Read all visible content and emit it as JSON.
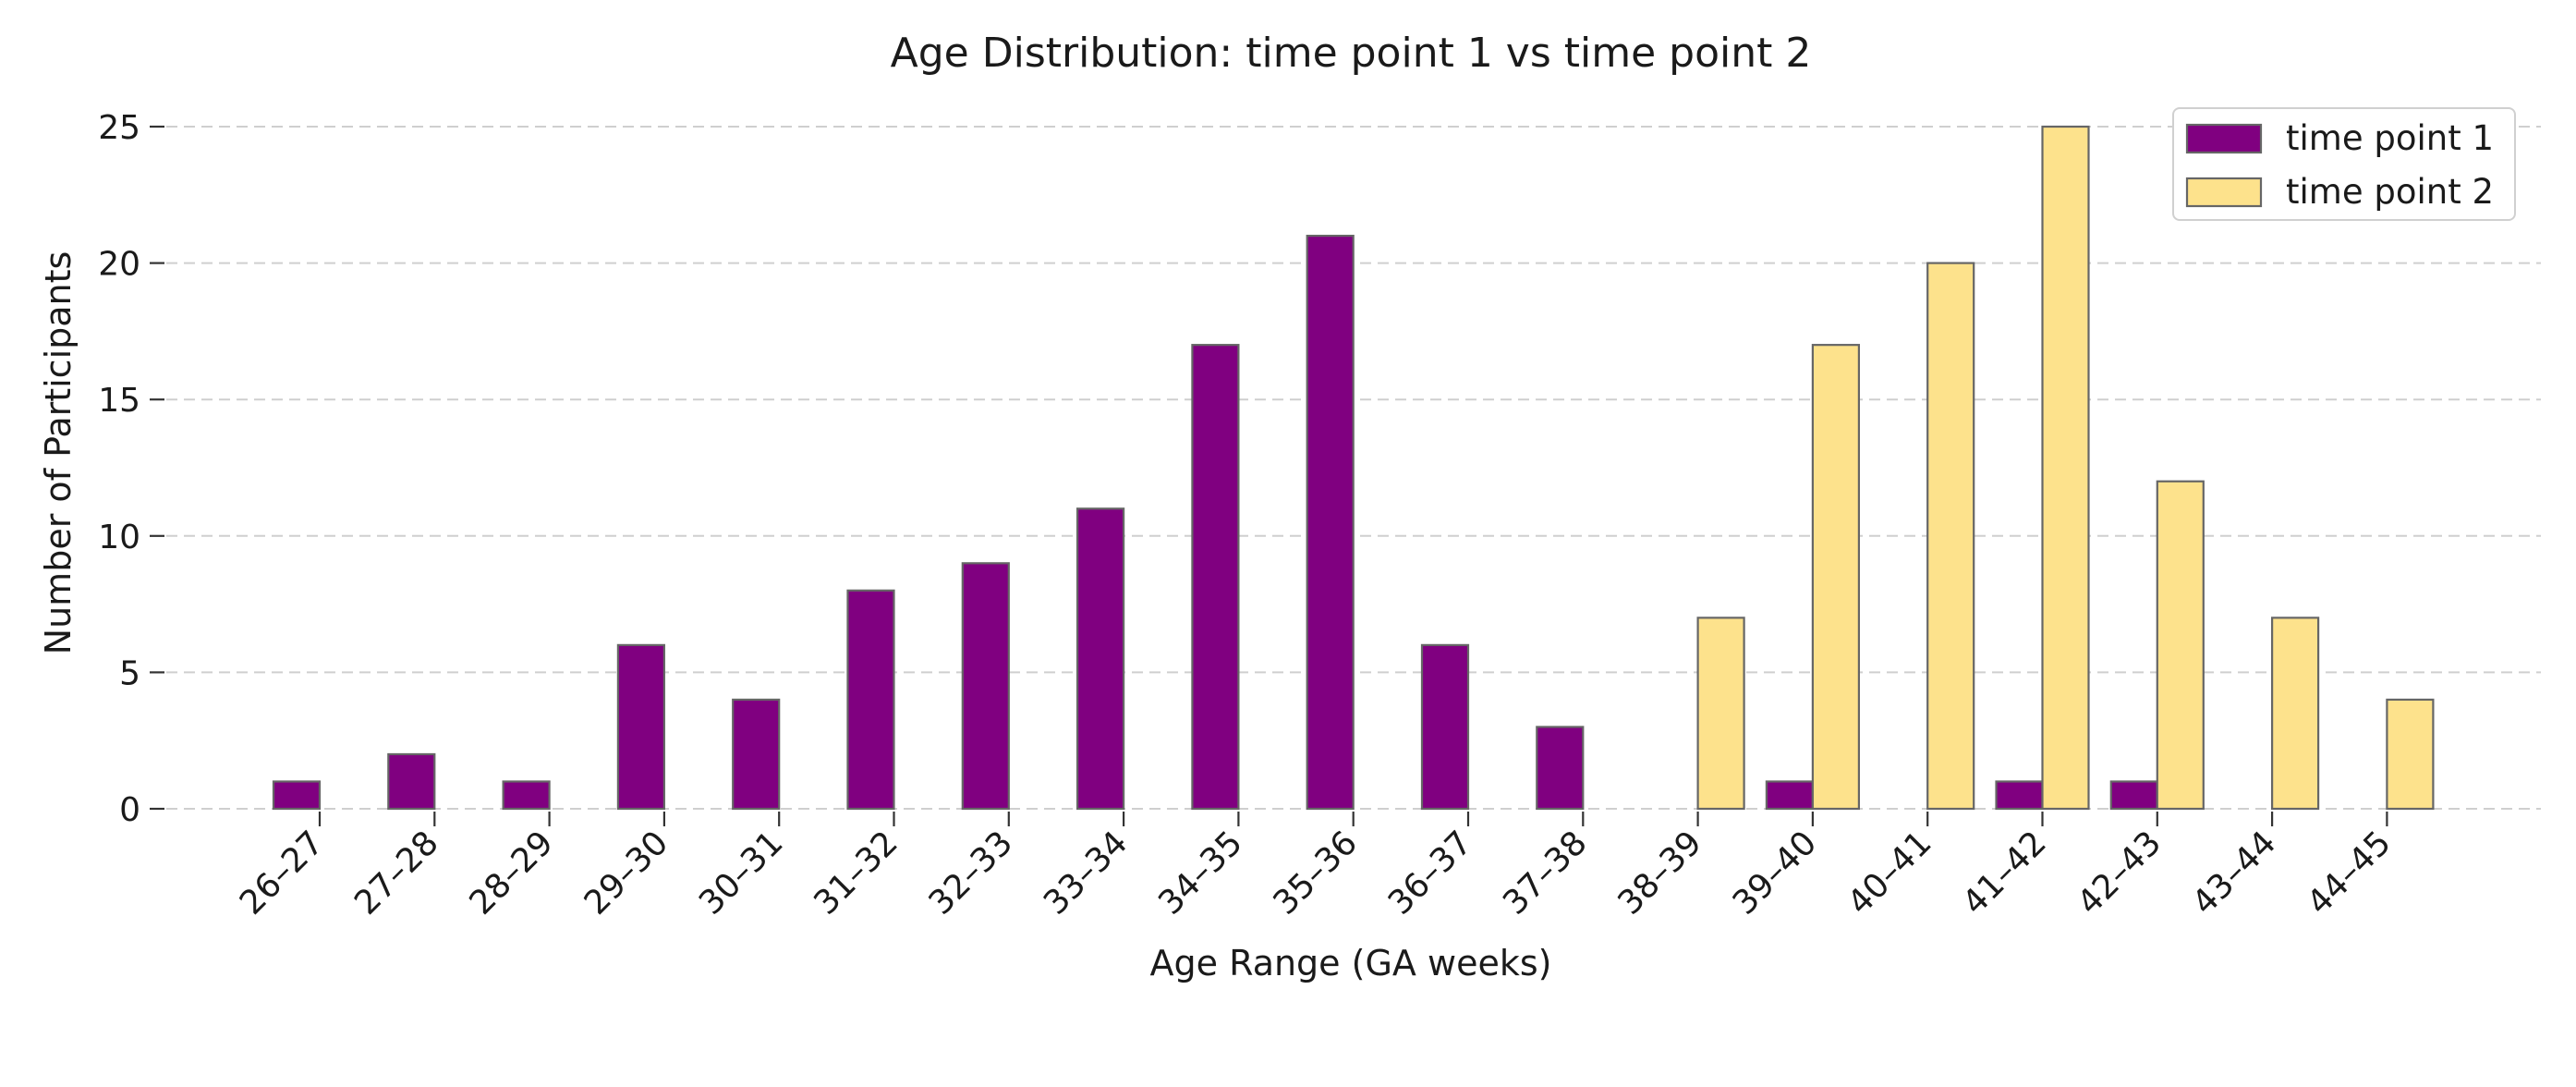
{
  "chart_data": {
    "type": "bar",
    "title": "Age Distribution: time point 1 vs time point 2",
    "xlabel": "Age Range (GA weeks)",
    "ylabel": "Number of Participants",
    "categories": [
      "26–27",
      "27–28",
      "28–29",
      "29–30",
      "30–31",
      "31–32",
      "32–33",
      "33–34",
      "34–35",
      "35–36",
      "36–37",
      "37–38",
      "38–39",
      "39–40",
      "40–41",
      "41–42",
      "42–43",
      "43–44",
      "44–45"
    ],
    "series": [
      {
        "name": "time point 1",
        "color": "#800080",
        "values": [
          1,
          2,
          1,
          6,
          4,
          8,
          9,
          11,
          17,
          21,
          6,
          3,
          0,
          1,
          0,
          1,
          1,
          0,
          0
        ]
      },
      {
        "name": "time point 2",
        "color": "#fde28c",
        "values": [
          0,
          0,
          0,
          0,
          0,
          0,
          0,
          0,
          0,
          0,
          0,
          0,
          7,
          17,
          20,
          25,
          12,
          7,
          4
        ]
      }
    ],
    "ylim": [
      0,
      25
    ],
    "yticks": [
      0,
      5,
      10,
      15,
      20,
      25
    ],
    "grid": "y, dashed",
    "legend": "top-right"
  }
}
